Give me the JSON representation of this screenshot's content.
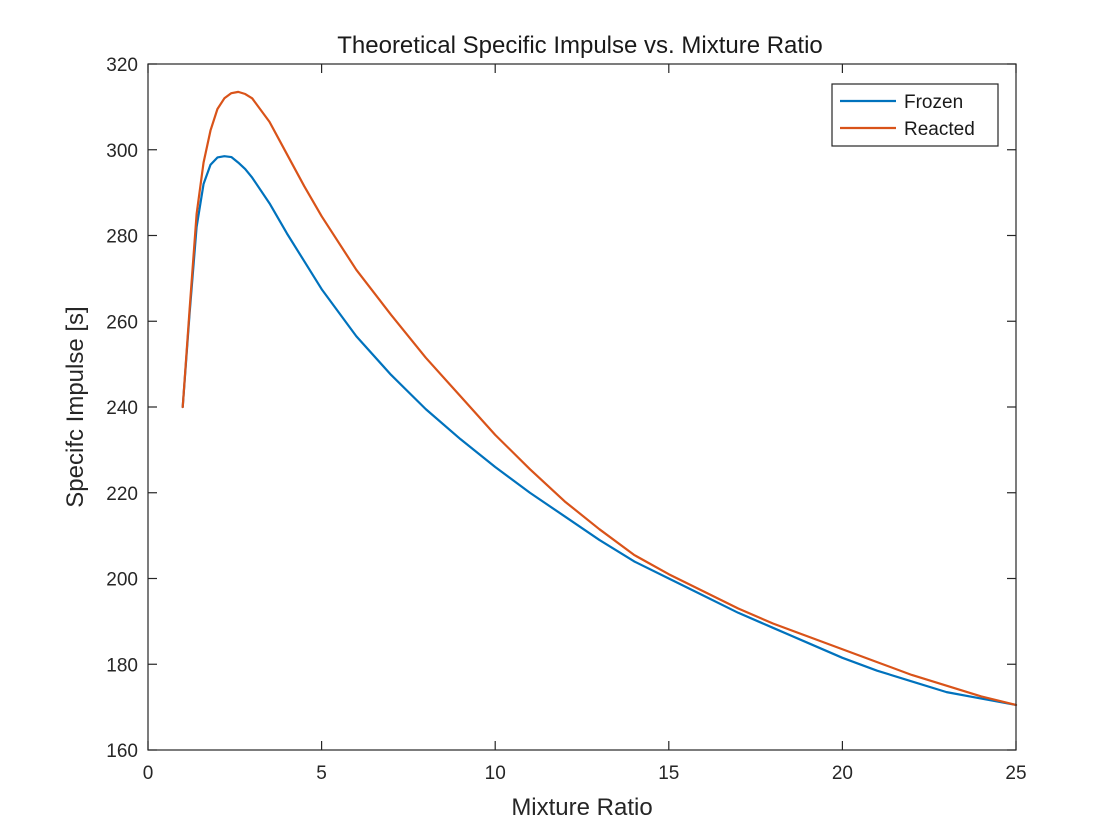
{
  "chart_data": {
    "type": "line",
    "title": "Theoretical Specific Impulse vs. Mixture Ratio",
    "xlabel": "Mixture Ratio",
    "ylabel": "Specifc Impulse [s]",
    "xlim": [
      0,
      25
    ],
    "ylim": [
      160,
      320
    ],
    "xticks": [
      0,
      5,
      10,
      15,
      20,
      25
    ],
    "yticks": [
      160,
      180,
      200,
      220,
      240,
      260,
      280,
      300,
      320
    ],
    "grid": false,
    "legend_position": "top-right",
    "series": [
      {
        "name": "Frozen",
        "color": "#0072BD",
        "x": [
          1,
          1.2,
          1.4,
          1.6,
          1.8,
          2.0,
          2.2,
          2.4,
          2.6,
          2.8,
          3.0,
          3.5,
          4,
          4.5,
          5,
          6,
          7,
          8,
          9,
          10,
          11,
          12,
          13,
          14,
          15,
          16,
          17,
          18,
          19,
          20,
          21,
          22,
          23,
          24,
          25
        ],
        "values": [
          240,
          262,
          282,
          292,
          296.5,
          298.2,
          298.5,
          298.3,
          297,
          295.5,
          293.5,
          287.5,
          280.5,
          274,
          267.5,
          256.5,
          247.5,
          239.5,
          232.5,
          226,
          220,
          214.5,
          209,
          204,
          200,
          196,
          192,
          188.5,
          185,
          181.5,
          178.5,
          176,
          173.5,
          172,
          170.5
        ]
      },
      {
        "name": "Reacted",
        "color": "#D95319",
        "x": [
          1,
          1.2,
          1.4,
          1.6,
          1.8,
          2.0,
          2.2,
          2.4,
          2.6,
          2.8,
          3.0,
          3.5,
          4,
          4.5,
          5,
          6,
          7,
          8,
          9,
          10,
          11,
          12,
          13,
          14,
          15,
          16,
          17,
          18,
          19,
          20,
          21,
          22,
          23,
          24,
          25
        ],
        "values": [
          240,
          263,
          285,
          297,
          304.5,
          309.5,
          312,
          313.2,
          313.5,
          313,
          312,
          306.5,
          299,
          291.5,
          284.5,
          272,
          261.5,
          251.5,
          242.5,
          233.5,
          225.5,
          218,
          211.5,
          205.5,
          201,
          197,
          193,
          189.5,
          186.5,
          183.5,
          180.5,
          177.5,
          175,
          172.5,
          170.5
        ]
      }
    ]
  }
}
